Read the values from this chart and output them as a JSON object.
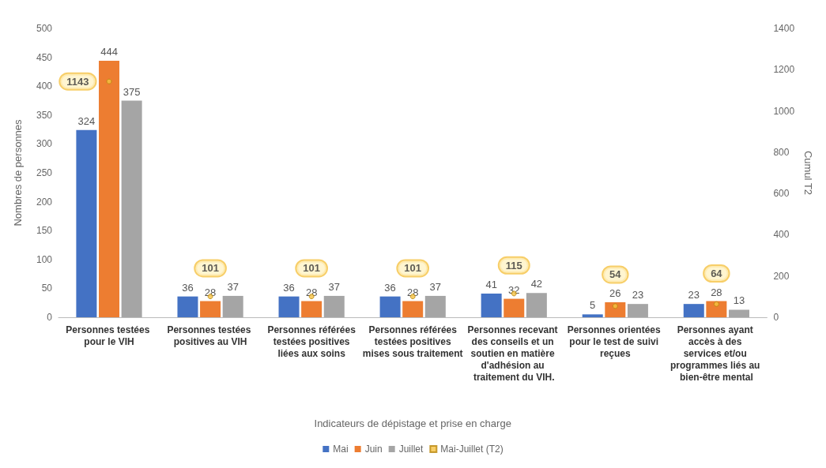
{
  "chart_data": {
    "type": "bar",
    "xlabel": "Indicateurs de dépistage et prise en charge",
    "ylabel": "Nombres de personnes",
    "y2label": "Cumul T2",
    "categories": [
      "Personnes testées pour le VIH",
      "Personnes testées positives au VIH",
      "Personnes référées testées positives liées aux soins",
      "Personnes référées testées positives mises sous traitement",
      "Personnes recevant des conseils et un soutien en matière d'adhésion au traitement du VIH.",
      "Personnes orientées pour le test de suivi reçues",
      "Personnes ayant accès à des services et/ou programmes liés au bien-être mental"
    ],
    "series": [
      {
        "name": "Mai",
        "color": "#4472c4",
        "values": [
          324,
          36,
          36,
          36,
          41,
          5,
          23
        ]
      },
      {
        "name": "Juin",
        "color": "#ed7d31",
        "values": [
          444,
          28,
          28,
          28,
          32,
          26,
          28
        ]
      },
      {
        "name": "Juillet",
        "color": "#a5a5a5",
        "values": [
          375,
          37,
          37,
          37,
          42,
          23,
          13
        ]
      },
      {
        "name": "Mai-Juillet (T2)",
        "type": "scatter",
        "axis": "y2",
        "marker": "circle",
        "color": "#f5c242",
        "values": [
          1143,
          101,
          101,
          101,
          115,
          54,
          64
        ]
      }
    ],
    "ylim": [
      0,
      500
    ],
    "yticks": [
      0,
      50,
      100,
      150,
      200,
      250,
      300,
      350,
      400,
      450,
      500
    ],
    "y2lim": [
      0,
      1400
    ],
    "y2ticks": [
      0,
      200,
      400,
      600,
      800,
      1000,
      1200,
      1400
    ],
    "data_labels": true,
    "grid": false,
    "legend": "bottom"
  }
}
